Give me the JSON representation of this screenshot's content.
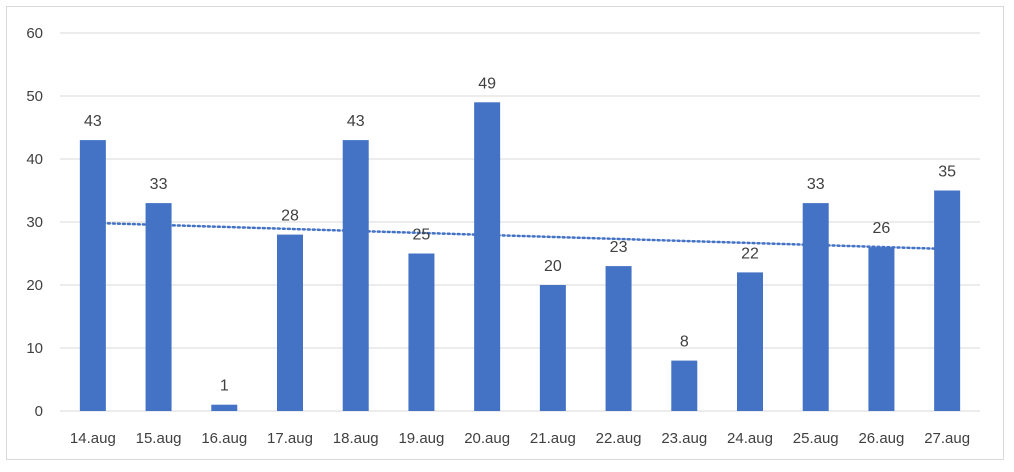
{
  "chart_data": {
    "type": "bar",
    "categories": [
      "14.aug",
      "15.aug",
      "16.aug",
      "17.aug",
      "18.aug",
      "19.aug",
      "20.aug",
      "21.aug",
      "22.aug",
      "23.aug",
      "24.aug",
      "25.aug",
      "26.aug",
      "27.aug"
    ],
    "values": [
      43,
      33,
      1,
      28,
      43,
      25,
      49,
      20,
      23,
      8,
      22,
      33,
      26,
      35
    ],
    "title": "",
    "xlabel": "",
    "ylabel": "",
    "ylim": [
      0,
      60
    ],
    "yticks": [
      0,
      10,
      20,
      30,
      40,
      50,
      60
    ],
    "grid": true,
    "data_labels": true,
    "trendline": {
      "type": "linear",
      "style": "dotted",
      "color": "#4472C4"
    },
    "colors": {
      "bar": "#4472C4",
      "grid": "#d9d9d9",
      "text": "#404040",
      "axis": "#d9d9d9"
    }
  }
}
